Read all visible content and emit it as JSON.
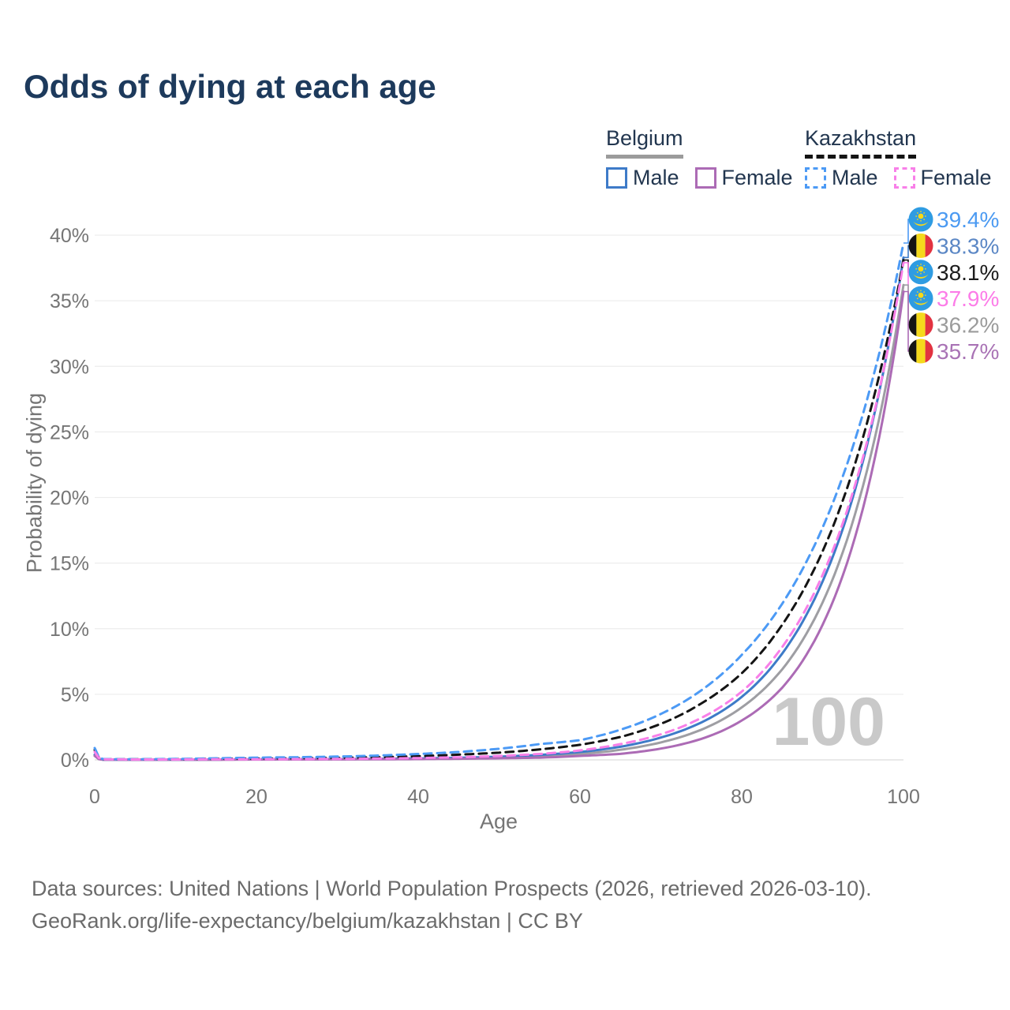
{
  "title": "Odds of dying at each age",
  "watermark": "100",
  "legend": {
    "groups": [
      {
        "label": "Belgium",
        "line_style": "solid",
        "underline_color": "#9b9b9b",
        "items": [
          {
            "label": "Male",
            "color": "#3e7bc8"
          },
          {
            "label": "Female",
            "color": "#ac6bb5"
          }
        ]
      },
      {
        "label": "Kazakhstan",
        "line_style": "dashed",
        "underline_color": "#141414",
        "items": [
          {
            "label": "Male",
            "color": "#4c9af5"
          },
          {
            "label": "Female",
            "color": "#f87fe8"
          }
        ]
      }
    ]
  },
  "chart_data": {
    "type": "line",
    "title": "Odds of dying at each age",
    "xlabel": "Age",
    "ylabel": "Probability of dying",
    "xlim": [
      0,
      100
    ],
    "ylim": [
      0,
      40
    ],
    "x_ticks": [
      0,
      20,
      40,
      60,
      80,
      100
    ],
    "y_ticks": [
      0,
      5,
      10,
      15,
      20,
      25,
      30,
      35,
      40
    ],
    "y_tick_suffix": "%",
    "grid": true,
    "x": [
      0,
      1,
      5,
      10,
      15,
      20,
      25,
      30,
      35,
      40,
      45,
      50,
      55,
      60,
      65,
      70,
      75,
      80,
      85,
      90,
      95,
      100
    ],
    "series": [
      {
        "id": "belgium-both",
        "name": "Belgium (both sexes)",
        "color": "#9e9ea3",
        "dash": false,
        "flag": "be",
        "end_label": "36.2%",
        "label_color": "#9b9b9b",
        "values": [
          0.35,
          0.015,
          0.01,
          0.012,
          0.02,
          0.03,
          0.04,
          0.045,
          0.06,
          0.085,
          0.12,
          0.18,
          0.28,
          0.44,
          0.77,
          1.33,
          2.3,
          4.0,
          6.9,
          12.0,
          20.9,
          36.2
        ]
      },
      {
        "id": "belgium-male",
        "name": "Belgium Male",
        "color": "#3e7bc8",
        "dash": false,
        "flag": "be",
        "end_label": "38.3%",
        "label_color": "#5b87c5",
        "values": [
          0.4,
          0.02,
          0.01,
          0.015,
          0.025,
          0.04,
          0.05,
          0.06,
          0.08,
          0.11,
          0.16,
          0.25,
          0.38,
          0.6,
          1.0,
          1.7,
          2.85,
          4.8,
          8.1,
          13.6,
          22.8,
          38.3
        ]
      },
      {
        "id": "belgium-female",
        "name": "Belgium Female",
        "color": "#ac6bb5",
        "dash": false,
        "flag": "be",
        "end_label": "35.7%",
        "label_color": "#a973b5",
        "values": [
          0.3,
          0.012,
          0.008,
          0.01,
          0.018,
          0.025,
          0.03,
          0.035,
          0.045,
          0.06,
          0.085,
          0.12,
          0.17,
          0.3,
          0.46,
          0.86,
          1.6,
          3.0,
          5.5,
          10.3,
          19.2,
          35.7
        ]
      },
      {
        "id": "kazakhstan-both",
        "name": "Kazakhstan (both sexes)",
        "color": "#141414",
        "dash": true,
        "flag": "kz",
        "end_label": "38.1%",
        "label_color": "#1c1c1c",
        "values": [
          0.75,
          0.05,
          0.04,
          0.05,
          0.08,
          0.1,
          0.12,
          0.15,
          0.2,
          0.28,
          0.4,
          0.55,
          0.8,
          1.15,
          1.75,
          2.75,
          4.3,
          6.6,
          10.3,
          15.9,
          24.6,
          38.1
        ]
      },
      {
        "id": "kazakhstan-male",
        "name": "Kazakhstan Male",
        "color": "#4c9af5",
        "dash": true,
        "flag": "kz",
        "end_label": "39.4%",
        "label_color": "#4b9af2",
        "values": [
          0.9,
          0.06,
          0.05,
          0.07,
          0.12,
          0.17,
          0.2,
          0.25,
          0.33,
          0.45,
          0.6,
          0.85,
          1.2,
          1.5,
          2.3,
          3.5,
          5.3,
          8.0,
          11.9,
          17.7,
          26.4,
          39.4
        ]
      },
      {
        "id": "kazakhstan-female",
        "name": "Kazakhstan Female",
        "color": "#f87fe8",
        "dash": true,
        "flag": "kz",
        "end_label": "37.9%",
        "label_color": "#fc7ce8",
        "values": [
          0.6,
          0.04,
          0.03,
          0.03,
          0.05,
          0.05,
          0.06,
          0.07,
          0.1,
          0.14,
          0.2,
          0.3,
          0.45,
          0.72,
          1.2,
          1.95,
          3.2,
          5.2,
          8.6,
          14.1,
          23.1,
          37.9
        ]
      }
    ]
  },
  "footer": {
    "line1": "Data sources: United Nations | World Population Prospects (2026, retrieved 2026-03-10).",
    "line2": "GeoRank.org/life-expectancy/belgium/kazakhstan | CC BY"
  }
}
